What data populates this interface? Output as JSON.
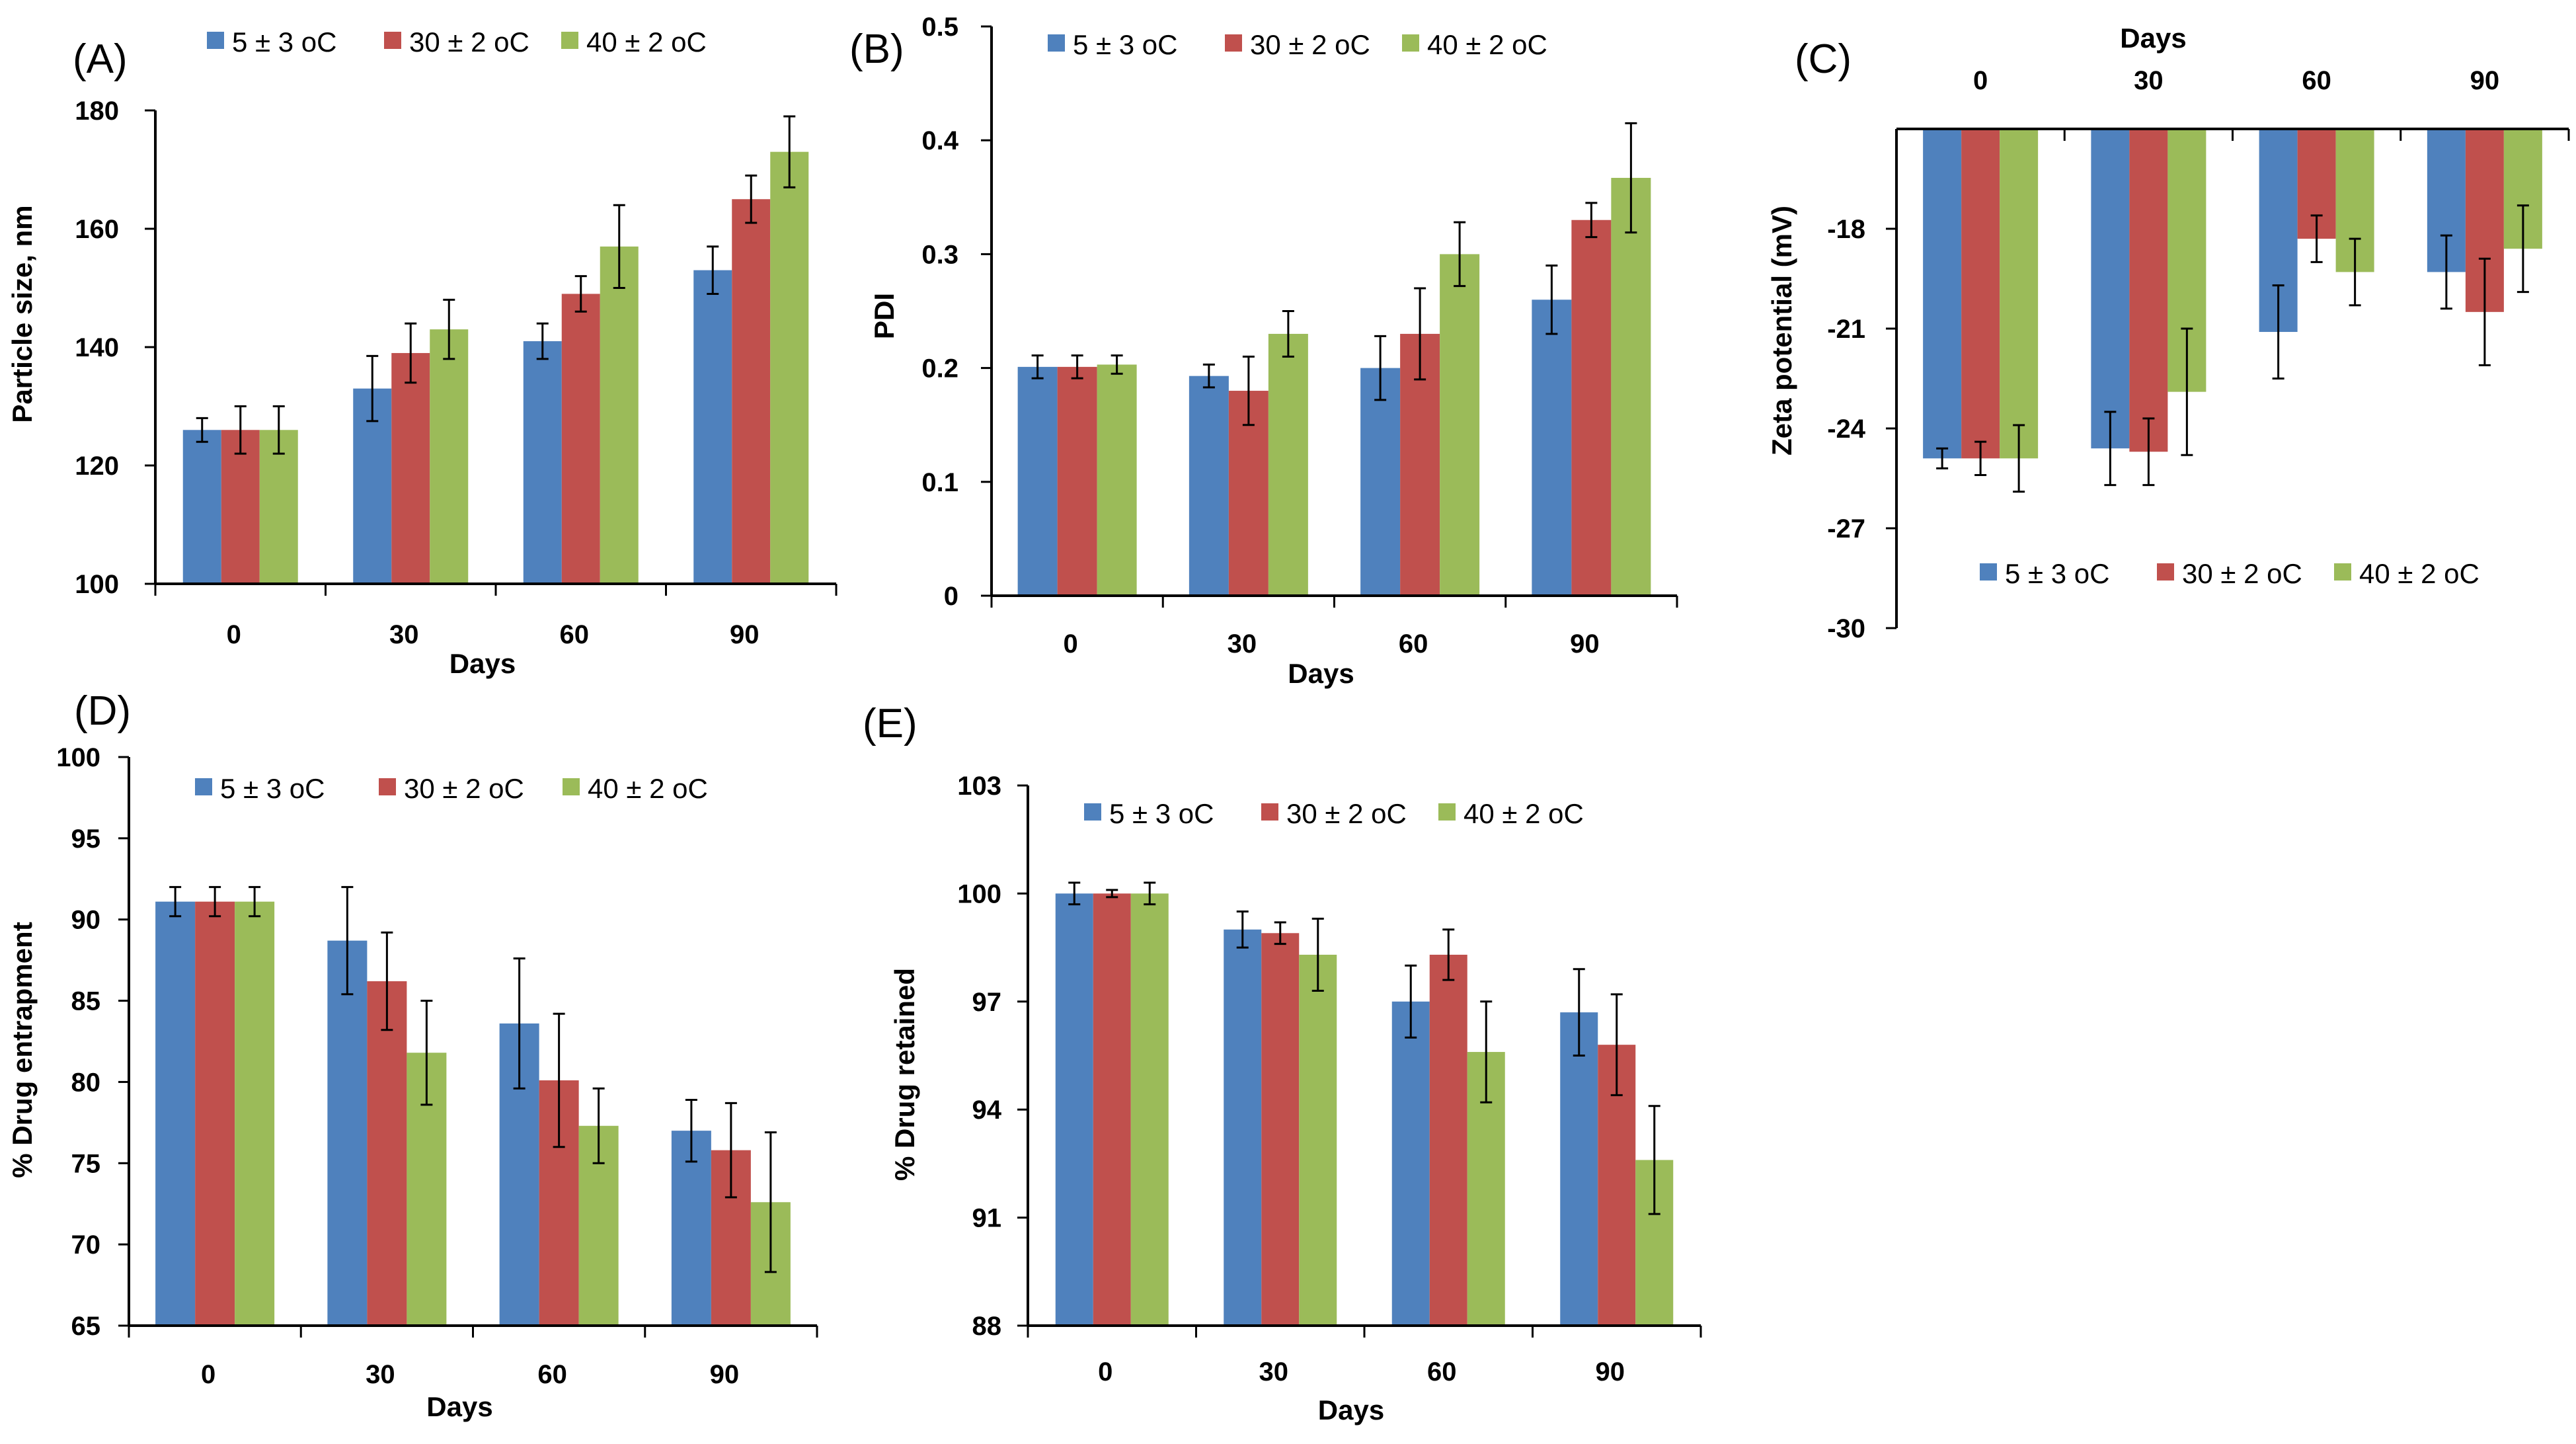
{
  "figure": {
    "colors": {
      "series": [
        "#4F81BD",
        "#C0504D",
        "#9BBB59"
      ],
      "axis": "#000000",
      "error": "#000000"
    }
  },
  "chart_data": [
    {
      "panel": "(A)",
      "type": "bar",
      "xlabel": "Days",
      "ylabel": "Particle size, nm",
      "categories": [
        "0",
        "30",
        "60",
        "90"
      ],
      "ylim": [
        100,
        180
      ],
      "yticks": [
        100,
        120,
        140,
        160,
        180
      ],
      "ytick_labels": [
        "100",
        "120",
        "140",
        "160",
        "180"
      ],
      "series": [
        {
          "name": "5 ± 3 oC",
          "values": [
            126,
            133,
            141,
            153
          ],
          "errors": [
            2,
            5.5,
            3,
            4
          ]
        },
        {
          "name": "30 ± 2 oC",
          "values": [
            126,
            139,
            149,
            165
          ],
          "errors": [
            4,
            5,
            3,
            4
          ]
        },
        {
          "name": "40 ± 2 oC",
          "values": [
            126,
            143,
            157,
            173
          ],
          "errors": [
            4,
            5,
            7,
            6
          ]
        }
      ]
    },
    {
      "panel": "(B)",
      "type": "bar",
      "xlabel": "Days",
      "ylabel": "PDI",
      "categories": [
        "0",
        "30",
        "60",
        "90"
      ],
      "ylim": [
        0,
        0.5
      ],
      "yticks": [
        0,
        0.1,
        0.2,
        0.3,
        0.4,
        0.5
      ],
      "ytick_labels": [
        "0",
        "0.1",
        "0.2",
        "0.3",
        "0.4",
        "0.5"
      ],
      "series": [
        {
          "name": "5 ± 3 oC",
          "values": [
            0.201,
            0.193,
            0.2,
            0.26
          ],
          "errors": [
            0.01,
            0.01,
            0.028,
            0.03
          ]
        },
        {
          "name": "30 ± 2 oC",
          "values": [
            0.201,
            0.18,
            0.23,
            0.33
          ],
          "errors": [
            0.01,
            0.03,
            0.04,
            0.015
          ]
        },
        {
          "name": "40 ± 2 oC",
          "values": [
            0.203,
            0.23,
            0.3,
            0.367
          ],
          "errors": [
            0.008,
            0.02,
            0.028,
            0.048
          ]
        }
      ]
    },
    {
      "panel": "(C)",
      "type": "bar",
      "xlabel": "Days",
      "ylabel": "Zeta potential (mV)",
      "categories": [
        "0",
        "30",
        "60",
        "90"
      ],
      "ylim": [
        -30,
        -15
      ],
      "yticks": [
        -18,
        -21,
        -24,
        -27,
        -30
      ],
      "ytick_labels": [
        "-18",
        "-21",
        "-24",
        "-27",
        "-30"
      ],
      "series": [
        {
          "name": "5 ± 3 oC",
          "values": [
            -24.9,
            -24.6,
            -21.1,
            -19.3
          ],
          "errors": [
            0.3,
            1.1,
            1.4,
            1.1
          ]
        },
        {
          "name": "30 ± 2 oC",
          "values": [
            -24.9,
            -24.7,
            -18.3,
            -20.5
          ],
          "errors": [
            0.5,
            1.0,
            0.7,
            1.6
          ]
        },
        {
          "name": "40 ± 2 oC",
          "values": [
            -24.9,
            -22.9,
            -19.3,
            -18.6
          ],
          "errors": [
            1.0,
            1.9,
            1.0,
            1.3
          ]
        }
      ]
    },
    {
      "panel": "(D)",
      "type": "bar",
      "xlabel": "Days",
      "ylabel": "% Drug entrapment",
      "categories": [
        "0",
        "30",
        "60",
        "90"
      ],
      "ylim": [
        65,
        100
      ],
      "yticks": [
        65,
        70,
        75,
        80,
        85,
        90,
        95,
        100
      ],
      "ytick_labels": [
        "65",
        "70",
        "75",
        "80",
        "85",
        "90",
        "95",
        "100"
      ],
      "series": [
        {
          "name": "5 ± 3 oC",
          "values": [
            91.1,
            88.7,
            83.6,
            77
          ],
          "errors": [
            0.9,
            3.3,
            4,
            1.9
          ]
        },
        {
          "name": "30 ± 2 oC",
          "values": [
            91.1,
            86.2,
            80.1,
            75.8
          ],
          "errors": [
            0.9,
            3,
            4.1,
            2.9
          ]
        },
        {
          "name": "40 ± 2 oC",
          "values": [
            91.1,
            81.8,
            77.3,
            72.6
          ],
          "errors": [
            0.9,
            3.2,
            2.3,
            4.3
          ]
        }
      ]
    },
    {
      "panel": "(E)",
      "type": "bar",
      "xlabel": "Days",
      "ylabel": "% Drug retained",
      "categories": [
        "0",
        "30",
        "60",
        "90"
      ],
      "ylim": [
        88,
        103
      ],
      "yticks": [
        88,
        91,
        94,
        97,
        100,
        103
      ],
      "ytick_labels": [
        "88",
        "91",
        "94",
        "97",
        "100",
        "103"
      ],
      "series": [
        {
          "name": "5 ± 3 oC",
          "values": [
            100,
            99,
            97,
            96.7
          ],
          "errors": [
            0.3,
            0.5,
            1,
            1.2
          ]
        },
        {
          "name": "30 ± 2 oC",
          "values": [
            100,
            98.9,
            98.3,
            95.8
          ],
          "errors": [
            0.1,
            0.3,
            0.7,
            1.4
          ]
        },
        {
          "name": "40 ± 2 oC",
          "values": [
            100,
            98.3,
            95.6,
            92.6
          ],
          "errors": [
            0.3,
            1,
            1.4,
            1.5
          ]
        }
      ]
    }
  ]
}
